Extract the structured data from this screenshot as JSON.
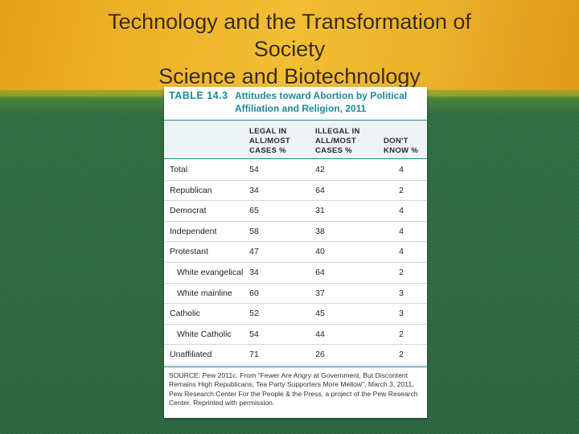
{
  "slide": {
    "title_line1": "Technology and the Transformation of",
    "title_line2": "Society",
    "title_line3": "Science and Biotechnology"
  },
  "table": {
    "number": "TABLE 14.3",
    "caption": "Attitudes toward Abortion by Political Affiliation and Religion, 2011",
    "headers": {
      "legal": [
        "LEGAL IN",
        "ALL/MOST",
        "CASES %"
      ],
      "illegal": [
        "ILLEGAL IN",
        "ALL/MOST",
        "CASES %"
      ],
      "dontknow": [
        "DON'T",
        "KNOW %"
      ]
    },
    "rows": [
      {
        "label": "Total",
        "legal": "54",
        "illegal": "42",
        "dk": "4"
      },
      {
        "label": "Republican",
        "legal": "34",
        "illegal": "64",
        "dk": "2"
      },
      {
        "label": "Democrat",
        "legal": "65",
        "illegal": "31",
        "dk": "4"
      },
      {
        "label": "Independent",
        "legal": "58",
        "illegal": "38",
        "dk": "4"
      },
      {
        "label": "Protestant",
        "legal": "47",
        "illegal": "40",
        "dk": "4"
      },
      {
        "label": "White evangelical",
        "legal": "34",
        "illegal": "64",
        "dk": "2"
      },
      {
        "label": "White mainline",
        "legal": "60",
        "illegal": "37",
        "dk": "3"
      },
      {
        "label": "Catholic",
        "legal": "52",
        "illegal": "45",
        "dk": "3"
      },
      {
        "label": "White Catholic",
        "legal": "54",
        "illegal": "44",
        "dk": "2"
      },
      {
        "label": "Unaffiliated",
        "legal": "71",
        "illegal": "26",
        "dk": "2"
      }
    ],
    "source": "SOURCE: Pew 2011c. From \"Fewer Are Angry at Government, But Discontent Remains High Republicans, Tea Party Supporters More Mellow\", March 3, 2011, Pew Research Center For the People & the Press, a project of the Pew Research Center. Reprinted with permission."
  },
  "colors": {
    "accent": "#1a8a9a",
    "background_green": "#2d6a3f",
    "band_gold": "#eeb52a"
  }
}
